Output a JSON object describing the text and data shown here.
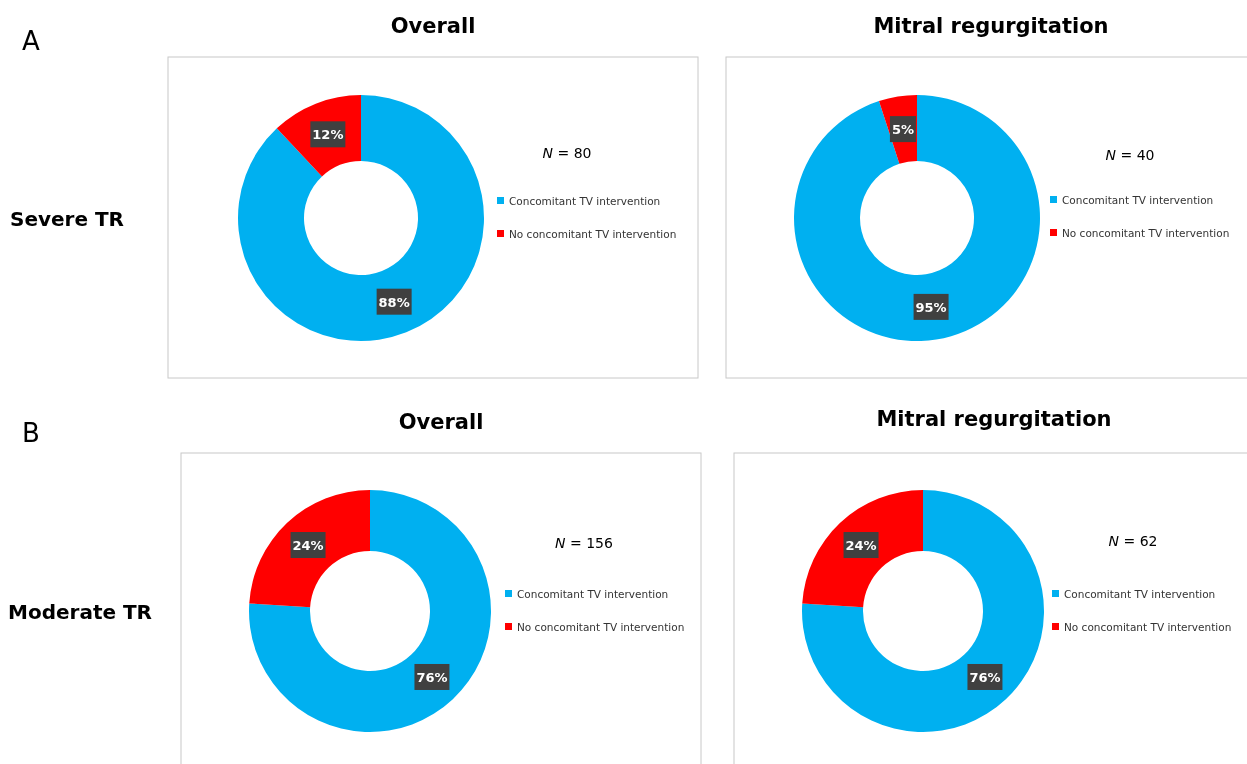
{
  "chart_data": [
    {
      "type": "donut",
      "title": "Overall",
      "categories": [
        "Concomitant TV intervention",
        "No concomitant TV intervention"
      ],
      "values": [
        88,
        12
      ],
      "colors": [
        "#00b0f0",
        "#ff0000"
      ],
      "value_labels": [
        "88%",
        "12%"
      ],
      "legend": "right",
      "annotations": [
        "N = 80",
        "A",
        "Severe TR"
      ]
    },
    {
      "type": "donut",
      "title": "Mitral regurgitation",
      "categories": [
        "Concomitant TV intervention",
        "No concomitant TV intervention"
      ],
      "values": [
        95,
        5
      ],
      "colors": [
        "#00b0f0",
        "#ff0000"
      ],
      "value_labels": [
        "95%",
        "5%"
      ],
      "legend": "right",
      "annotations": [
        "N = 40"
      ]
    },
    {
      "type": "donut",
      "title": "Overall",
      "categories": [
        "Concomitant TV intervention",
        "No concomitant TV intervention"
      ],
      "values": [
        76,
        24
      ],
      "colors": [
        "#00b0f0",
        "#ff0000"
      ],
      "value_labels": [
        "76%",
        "24%"
      ],
      "legend": "right",
      "annotations": [
        "N = 156",
        "B",
        "Moderate TR"
      ]
    },
    {
      "type": "donut",
      "title": "Mitral regurgitation",
      "categories": [
        "Concomitant TV intervention",
        "No concomitant TV intervention"
      ],
      "values": [
        76,
        24
      ],
      "colors": [
        "#00b0f0",
        "#ff0000"
      ],
      "value_labels": [
        "76%",
        "24%"
      ],
      "legend": "right",
      "annotations": [
        "N = 62"
      ]
    }
  ]
}
